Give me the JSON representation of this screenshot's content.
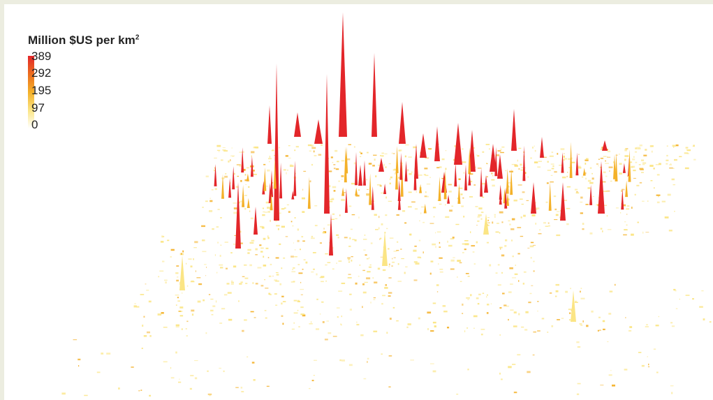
{
  "legend": {
    "title": "Million $US per km",
    "title_superscript": "2",
    "ticks": [
      "389",
      "292",
      "195",
      "97",
      "0"
    ],
    "colors": [
      "#e3262a",
      "#ec6d1e",
      "#f4b129",
      "#fbe585",
      "#ffffff"
    ]
  },
  "colors": {
    "background": "#ecede0",
    "map_background": "#ffffff",
    "low": "#fbe585",
    "mid": "#f4b129",
    "high": "#e3262a"
  }
}
